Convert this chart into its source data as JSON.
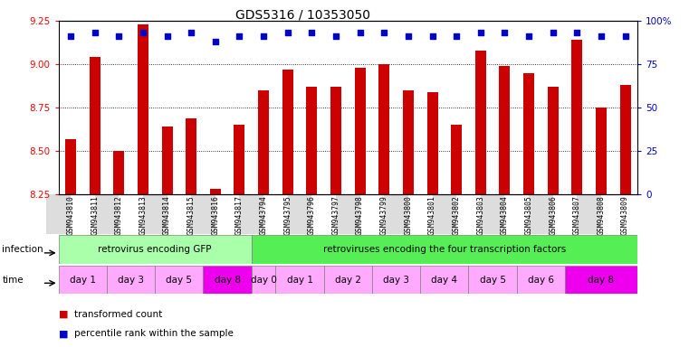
{
  "title": "GDS5316 / 10353050",
  "samples": [
    "GSM943810",
    "GSM943811",
    "GSM943812",
    "GSM943813",
    "GSM943814",
    "GSM943815",
    "GSM943816",
    "GSM943817",
    "GSM943794",
    "GSM943795",
    "GSM943796",
    "GSM943797",
    "GSM943798",
    "GSM943799",
    "GSM943800",
    "GSM943801",
    "GSM943802",
    "GSM943803",
    "GSM943804",
    "GSM943805",
    "GSM943806",
    "GSM943807",
    "GSM943808",
    "GSM943809"
  ],
  "red_values": [
    8.57,
    9.04,
    8.5,
    9.23,
    8.64,
    8.69,
    8.28,
    8.65,
    8.85,
    8.97,
    8.87,
    8.87,
    8.98,
    9.0,
    8.85,
    8.84,
    8.65,
    9.08,
    8.99,
    8.95,
    8.87,
    9.14,
    8.75,
    8.88
  ],
  "blue_values": [
    91,
    93,
    91,
    93,
    91,
    93,
    88,
    91,
    91,
    93,
    93,
    91,
    93,
    93,
    91,
    91,
    91,
    93,
    93,
    91,
    93,
    93,
    91,
    91
  ],
  "ylim_left": [
    8.25,
    9.25
  ],
  "ylim_right": [
    0,
    100
  ],
  "yticks_left": [
    8.25,
    8.5,
    8.75,
    9.0,
    9.25
  ],
  "yticks_right": [
    0,
    25,
    50,
    75,
    100
  ],
  "ytick_right_labels": [
    "0",
    "25",
    "50",
    "75",
    "100%"
  ],
  "infection_groups": [
    {
      "label": "retrovirus encoding GFP",
      "start": 0,
      "end": 8,
      "color": "#aaffaa"
    },
    {
      "label": "retroviruses encoding the four transcription factors",
      "start": 8,
      "end": 24,
      "color": "#55ee55"
    }
  ],
  "time_groups": [
    {
      "label": "day 1",
      "start": 0,
      "end": 2,
      "color": "#ffaaff"
    },
    {
      "label": "day 3",
      "start": 2,
      "end": 4,
      "color": "#ffaaff"
    },
    {
      "label": "day 5",
      "start": 4,
      "end": 6,
      "color": "#ffaaff"
    },
    {
      "label": "day 8",
      "start": 6,
      "end": 8,
      "color": "#ee00ee"
    },
    {
      "label": "day 0",
      "start": 8,
      "end": 9,
      "color": "#ffaaff"
    },
    {
      "label": "day 1",
      "start": 9,
      "end": 11,
      "color": "#ffaaff"
    },
    {
      "label": "day 2",
      "start": 11,
      "end": 13,
      "color": "#ffaaff"
    },
    {
      "label": "day 3",
      "start": 13,
      "end": 15,
      "color": "#ffaaff"
    },
    {
      "label": "day 4",
      "start": 15,
      "end": 17,
      "color": "#ffaaff"
    },
    {
      "label": "day 5",
      "start": 17,
      "end": 19,
      "color": "#ffaaff"
    },
    {
      "label": "day 6",
      "start": 19,
      "end": 21,
      "color": "#ffaaff"
    },
    {
      "label": "day 8",
      "start": 21,
      "end": 24,
      "color": "#ee00ee"
    }
  ],
  "bar_color": "#cc0000",
  "dot_color": "#0000cc",
  "bg_color": "#ffffff",
  "legend_red_label": "transformed count",
  "legend_blue_label": "percentile rank within the sample",
  "tick_bg_even": "#dddddd",
  "tick_bg_odd": "#ffffff"
}
